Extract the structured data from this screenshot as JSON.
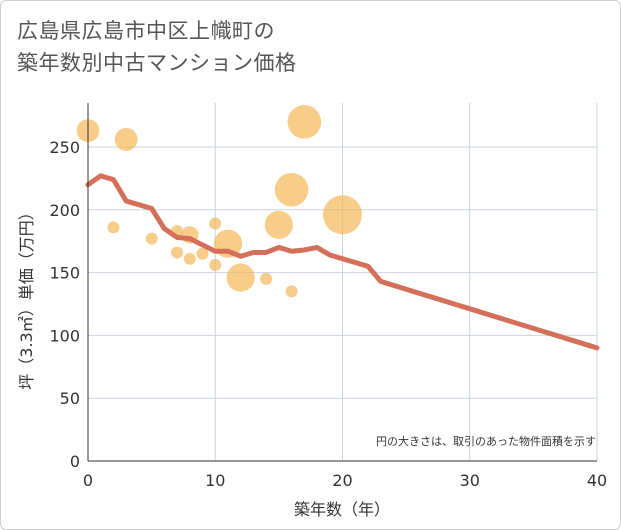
{
  "title_lines": [
    "広島県広島市中区上幟町の",
    "築年数別中古マンション価格"
  ],
  "note": "円の大きさは、取引のあった物件面積を示す",
  "chart_data": {
    "type": "scatter",
    "title": "広島県広島市中区上幟町の築年数別中古マンション価格",
    "xlabel": "築年数（年）",
    "ylabel": "坪（3.3㎡）単価（万円）",
    "xlim": [
      0,
      40
    ],
    "ylim": [
      0,
      285
    ],
    "xticks": [
      0,
      10,
      20,
      30,
      40
    ],
    "yticks": [
      0,
      50,
      100,
      150,
      200,
      250
    ],
    "grid": true,
    "colors": {
      "bubble": "#f5b95c",
      "line": "#d4705a"
    },
    "bubbles": [
      {
        "x": 0,
        "y": 263,
        "size": 3
      },
      {
        "x": 3,
        "y": 256,
        "size": 3
      },
      {
        "x": 17,
        "y": 270,
        "size": 5
      },
      {
        "x": 16,
        "y": 216,
        "size": 5
      },
      {
        "x": 20,
        "y": 196,
        "size": 6
      },
      {
        "x": 15,
        "y": 188,
        "size": 4
      },
      {
        "x": 2,
        "y": 186,
        "size": 1
      },
      {
        "x": 5,
        "y": 177,
        "size": 1
      },
      {
        "x": 7,
        "y": 183,
        "size": 1
      },
      {
        "x": 8,
        "y": 180,
        "size": 2
      },
      {
        "x": 10,
        "y": 189,
        "size": 1
      },
      {
        "x": 11,
        "y": 173,
        "size": 4
      },
      {
        "x": 7,
        "y": 166,
        "size": 1
      },
      {
        "x": 8,
        "y": 161,
        "size": 1
      },
      {
        "x": 9,
        "y": 165,
        "size": 1
      },
      {
        "x": 10,
        "y": 156,
        "size": 1
      },
      {
        "x": 12,
        "y": 146,
        "size": 4
      },
      {
        "x": 14,
        "y": 145,
        "size": 1
      },
      {
        "x": 16,
        "y": 135,
        "size": 1
      }
    ],
    "trend": {
      "x": [
        0,
        1,
        2,
        3,
        4,
        5,
        6,
        7,
        8,
        9,
        10,
        11,
        12,
        13,
        14,
        15,
        16,
        17,
        18,
        19,
        20,
        21,
        22,
        23,
        40
      ],
      "y": [
        220,
        227,
        224,
        207,
        204,
        201,
        185,
        178,
        177,
        172,
        167,
        167,
        163,
        166,
        166,
        170,
        167,
        168,
        170,
        164,
        161,
        158,
        155,
        143,
        90
      ]
    }
  }
}
